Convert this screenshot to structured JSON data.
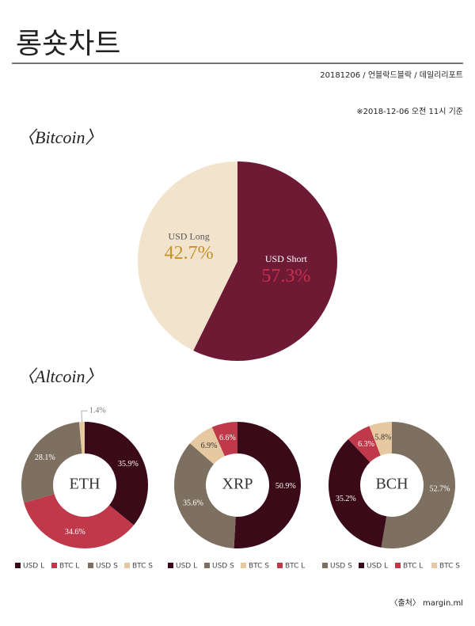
{
  "header": {
    "title": "롱숏차트",
    "subtitle": "20181206 / 언블락드블락 / 데일리리포트",
    "note": "※2018-12-06 오전 11시 기준"
  },
  "sections": [
    "〈Bitcoin〉",
    "〈Altcoin〉"
  ],
  "source": "〈출처〉 margin.ml",
  "chart_data": [
    {
      "type": "pie",
      "categories": [
        "USD Short",
        "USD Long"
      ],
      "values": [
        57.3,
        42.7
      ],
      "value_labels": [
        "57.3%",
        "42.7%"
      ],
      "colors": [
        "#6e1a35",
        "#f2e3cc"
      ],
      "label_colors": [
        "#c5304d",
        "#c8902a"
      ]
    },
    {
      "type": "donut",
      "center_label": "ETH",
      "categories": [
        "USD L",
        "BTC L",
        "USD S",
        "BTC S"
      ],
      "values": [
        35.9,
        34.6,
        28.1,
        1.4
      ],
      "value_labels": [
        "35.9%",
        "34.6%",
        "28.1%",
        "1.4%"
      ],
      "colors": [
        "#3a0a18",
        "#c0394b",
        "#7d7060",
        "#e6c9a0"
      ]
    },
    {
      "type": "donut",
      "center_label": "XRP",
      "categories": [
        "USD L",
        "USD S",
        "BTC S",
        "BTC L"
      ],
      "values": [
        50.9,
        35.6,
        6.9,
        6.6
      ],
      "value_labels": [
        "50.9%",
        "35.6%",
        "6.9%",
        "6.6%"
      ],
      "colors": [
        "#3a0a18",
        "#7d7060",
        "#e6c9a0",
        "#c0394b"
      ]
    },
    {
      "type": "donut",
      "center_label": "BCH",
      "categories": [
        "USD S",
        "USD L",
        "BTC L",
        "BTC S"
      ],
      "values": [
        52.7,
        35.2,
        6.3,
        5.8
      ],
      "value_labels": [
        "52.7%",
        "35.2%",
        "6.3%",
        "5.8%"
      ],
      "colors": [
        "#7d7060",
        "#3a0a18",
        "#c0394b",
        "#e6c9a0"
      ]
    }
  ]
}
